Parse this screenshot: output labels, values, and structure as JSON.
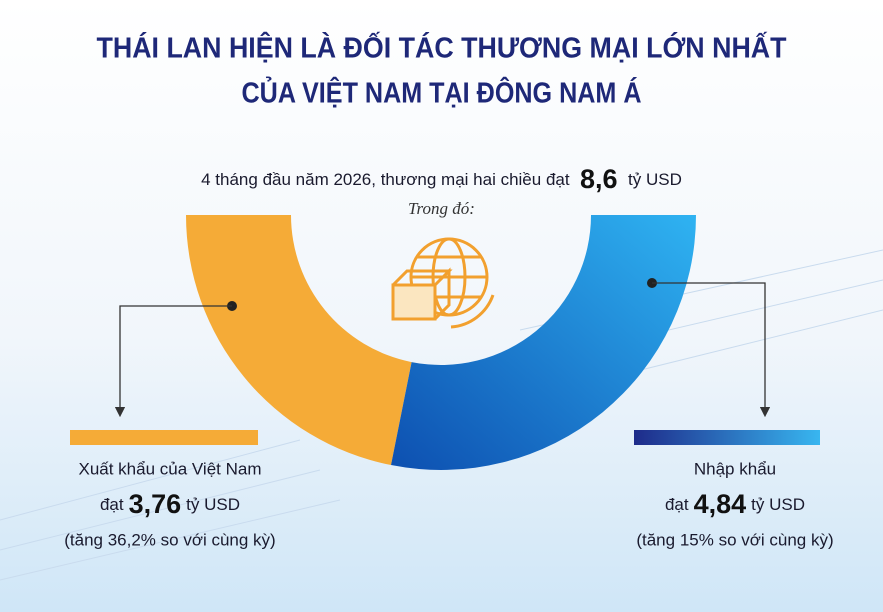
{
  "chart_data": {
    "type": "half-donut",
    "title": [
      "THÁI LAN HIỆN LÀ ĐỐI TÁC THƯƠNG MẠI LỚN NHẤT",
      "CỦA VIỆT NAM TẠI ĐÔNG NAM Á"
    ],
    "subtitle": "4 tháng đầu năm 2026, thương mại hai chiều đạt",
    "total": 8.6,
    "total_label": "8,6",
    "unit": "tỷ USD",
    "note": "Trong đó:",
    "categories": [
      "Xuất khẩu của Việt Nam",
      "Nhập khẩu"
    ],
    "prefix": "đạt",
    "values": [
      3.76,
      4.84
    ],
    "value_labels": [
      "3,76",
      "4,84"
    ],
    "growth": [
      "(tăng 36,2% so với cùng kỳ)",
      "(tăng 15% so với cùng kỳ)"
    ],
    "colors": [
      "#f5ab37",
      "#1b8fe2"
    ]
  }
}
